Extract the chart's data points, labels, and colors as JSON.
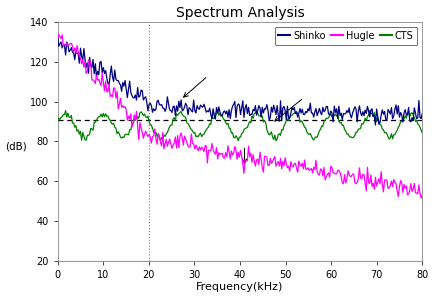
{
  "title": "Spectrum Analysis",
  "xlabel": "Frequency(kHz)",
  "ylabel": "(dB)",
  "xlim": [
    0,
    80
  ],
  "ylim": [
    20,
    140
  ],
  "yticks": [
    20,
    40,
    60,
    80,
    100,
    120,
    140
  ],
  "xticks": [
    0,
    10,
    20,
    30,
    40,
    50,
    60,
    70,
    80
  ],
  "legend_labels": [
    "Shinko",
    "Hugle",
    "CTS"
  ],
  "shinko_color": "#000080",
  "hugle_color": "#FF00FF",
  "cts_color": "#008000",
  "dashed_line_y": 91,
  "vertical_dashed_x": 20,
  "background_color": "#ffffff",
  "figsize": [
    4.34,
    2.98
  ],
  "dpi": 100
}
